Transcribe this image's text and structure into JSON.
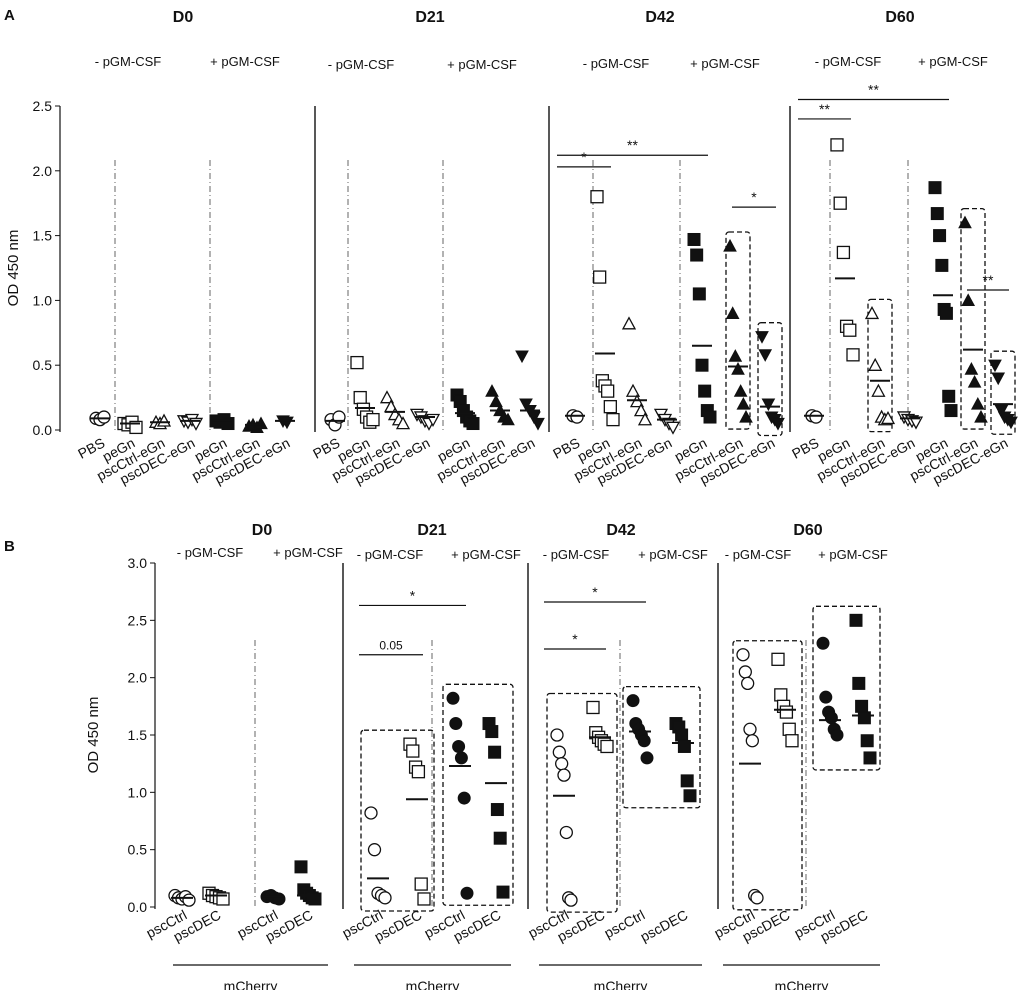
{
  "chart_data": [
    {
      "panel": "A",
      "type": "scatter",
      "ylabel": "OD 450 nm",
      "ylim": [
        0,
        2.5
      ],
      "yticks": [
        "0.0",
        "0.5",
        "1.0",
        "1.5",
        "2.0",
        "2.5"
      ],
      "neg_label": "- pGM-CSF",
      "pos_label": "+ pGM-CSF",
      "categories": [
        "PBS",
        "peGn",
        "pscCtrl-eGn",
        "pscDEC-eGn",
        "peGn",
        "pscCtrl-eGn",
        "pscDEC-eGn"
      ],
      "timepoints": [
        {
          "title": "D0",
          "groups": [
            {
              "marker": "circle-open",
              "values": [
                0.09,
                0.08,
                0.1
              ],
              "mean": 0.09
            },
            {
              "marker": "square-open",
              "values": [
                0.05,
                0.04,
                0.06,
                0.02
              ],
              "mean": 0.05
            },
            {
              "marker": "triangle-open",
              "values": [
                0.06,
                0.05,
                0.07
              ],
              "mean": 0.06
            },
            {
              "marker": "triangle-down-open",
              "values": [
                0.07,
                0.06,
                0.08,
                0.05
              ],
              "mean": 0.07
            },
            {
              "marker": "square-filled",
              "values": [
                0.07,
                0.06,
                0.08,
                0.05
              ],
              "mean": 0.07
            },
            {
              "marker": "triangle-filled",
              "values": [
                0.03,
                0.04,
                0.02,
                0.05
              ],
              "mean": 0.04
            },
            {
              "marker": "triangle-down-filled",
              "values": [
                0.07,
                0.06
              ],
              "mean": 0.07
            }
          ],
          "boxes": [],
          "sig": []
        },
        {
          "title": "D21",
          "groups": [
            {
              "marker": "circle-open",
              "values": [
                0.08,
                0.04,
                0.1
              ],
              "mean": 0.07
            },
            {
              "marker": "square-open",
              "values": [
                0.52,
                0.25,
                0.16,
                0.1,
                0.06,
                0.08
              ],
              "mean": 0.17
            },
            {
              "marker": "triangle-open",
              "values": [
                0.25,
                0.18,
                0.12,
                0.08,
                0.05
              ],
              "mean": 0.14
            },
            {
              "marker": "triangle-down-open",
              "values": [
                0.12,
                0.1,
                0.07,
                0.05,
                0.08
              ],
              "mean": 0.1
            },
            {
              "marker": "square-filled",
              "values": [
                0.27,
                0.22,
                0.15,
                0.1,
                0.07,
                0.05
              ],
              "mean": 0.13
            },
            {
              "marker": "triangle-filled",
              "values": [
                0.3,
                0.22,
                0.15,
                0.1,
                0.08
              ],
              "mean": 0.15
            },
            {
              "marker": "triangle-down-filled",
              "values": [
                0.57,
                0.2,
                0.15,
                0.1,
                0.05
              ],
              "mean": 0.15
            }
          ],
          "boxes": [],
          "sig": []
        },
        {
          "title": "D42",
          "groups": [
            {
              "marker": "circle-open",
              "values": [
                0.11,
                0.1
              ],
              "mean": 0.11
            },
            {
              "marker": "square-open",
              "values": [
                1.8,
                1.18,
                0.38,
                0.34,
                0.3,
                0.18,
                0.08
              ],
              "mean": 0.59
            },
            {
              "marker": "triangle-open",
              "values": [
                0.82,
                0.3,
                0.22,
                0.15,
                0.08
              ],
              "mean": 0.23
            },
            {
              "marker": "triangle-down-open",
              "values": [
                0.12,
                0.08,
                0.05,
                0.02
              ],
              "mean": 0.08
            },
            {
              "marker": "square-filled",
              "values": [
                1.47,
                1.35,
                1.05,
                0.5,
                0.3,
                0.15,
                0.1
              ],
              "mean": 0.65
            },
            {
              "marker": "triangle-filled",
              "values": [
                1.42,
                0.9,
                0.57,
                0.47,
                0.3,
                0.2,
                0.1
              ],
              "mean": 0.49
            },
            {
              "marker": "triangle-down-filled",
              "values": [
                0.72,
                0.58,
                0.2,
                0.1,
                0.08,
                0.05
              ],
              "mean": 0.18
            }
          ],
          "boxes": [
            [
              5,
              5
            ],
            [
              6,
              6
            ]
          ],
          "sig": [
            {
              "from": 0,
              "to": 1,
              "label": "*",
              "y": 2.03
            },
            {
              "from": 0,
              "to": 4,
              "label": "**",
              "y": 2.12
            },
            {
              "from": 5,
              "to": 6,
              "label": "*",
              "y": 1.72
            }
          ]
        },
        {
          "title": "D60",
          "groups": [
            {
              "marker": "circle-open",
              "values": [
                0.11,
                0.1
              ],
              "mean": 0.11
            },
            {
              "marker": "square-open",
              "values": [
                2.2,
                1.75,
                1.37,
                0.8,
                0.77,
                0.58
              ],
              "mean": 1.17
            },
            {
              "marker": "triangle-open",
              "values": [
                0.9,
                0.5,
                0.3,
                0.1,
                0.08,
                0.09
              ],
              "mean": 0.38
            },
            {
              "marker": "triangle-down-open",
              "values": [
                0.1,
                0.08,
                0.07,
                0.06
              ],
              "mean": 0.09
            },
            {
              "marker": "square-filled",
              "values": [
                1.87,
                1.67,
                1.5,
                1.27,
                0.93,
                0.9,
                0.26,
                0.15
              ],
              "mean": 1.04
            },
            {
              "marker": "triangle-filled",
              "values": [
                1.6,
                1.0,
                0.47,
                0.37,
                0.2,
                0.1
              ],
              "mean": 0.62
            },
            {
              "marker": "triangle-down-filled",
              "values": [
                0.5,
                0.4,
                0.15,
                0.1,
                0.08,
                0.06
              ],
              "mean": 0.2
            }
          ],
          "boxes": [
            [
              2,
              2
            ],
            [
              5,
              5
            ],
            [
              6,
              6
            ]
          ],
          "sig": [
            {
              "from": 0,
              "to": 1,
              "label": "**",
              "y": 2.4
            },
            {
              "from": 0,
              "to": 4,
              "label": "**",
              "y": 2.55
            },
            {
              "from": 5,
              "to": 6,
              "label": "**",
              "y": 1.08
            }
          ]
        }
      ]
    },
    {
      "panel": "B",
      "type": "scatter",
      "ylabel": "OD 450 nm",
      "ylim": [
        0,
        3.0
      ],
      "yticks": [
        "0.0",
        "0.5",
        "1.0",
        "1.5",
        "2.0",
        "2.5",
        "3.0"
      ],
      "neg_label": "- pGM-CSF",
      "pos_label": "+ pGM-CSF",
      "categories": [
        "pscCtrl",
        "pscDEC",
        "pscCtrl",
        "pscDEC"
      ],
      "group_label": "mCherry",
      "timepoints": [
        {
          "title": "D0",
          "groups": [
            {
              "marker": "circle-open",
              "values": [
                0.1,
                0.08,
                0.07,
                0.09,
                0.06
              ],
              "mean": 0.08
            },
            {
              "marker": "square-open",
              "values": [
                0.12,
                0.1,
                0.09,
                0.08,
                0.07
              ],
              "mean": 0.1
            },
            {
              "marker": "circle-filled",
              "values": [
                0.09,
                0.1,
                0.08,
                0.07
              ],
              "mean": 0.09
            },
            {
              "marker": "square-filled",
              "values": [
                0.35,
                0.15,
                0.12,
                0.1,
                0.08,
                0.07
              ],
              "mean": 0.1
            }
          ],
          "boxes": [],
          "sig": []
        },
        {
          "title": "D21",
          "groups": [
            {
              "marker": "circle-open",
              "values": [
                0.82,
                0.5,
                0.12,
                0.1,
                0.08
              ],
              "mean": 0.25
            },
            {
              "marker": "square-open",
              "values": [
                1.42,
                1.36,
                1.22,
                1.18,
                0.2,
                0.07
              ],
              "mean": 0.94
            },
            {
              "marker": "circle-filled",
              "values": [
                1.82,
                1.6,
                1.4,
                1.3,
                0.95,
                0.12
              ],
              "mean": 1.23
            },
            {
              "marker": "square-filled",
              "values": [
                1.6,
                1.53,
                1.35,
                0.85,
                0.6,
                0.13
              ],
              "mean": 1.08
            }
          ],
          "boxes": [
            [
              0,
              1
            ],
            [
              2,
              3
            ]
          ],
          "sig": [
            {
              "from": 0,
              "to": 1,
              "label": "0.05",
              "y": 2.2
            },
            {
              "from": 0,
              "to": 2,
              "label": "*",
              "y": 2.63
            }
          ]
        },
        {
          "title": "D42",
          "groups": [
            {
              "marker": "circle-open",
              "values": [
                1.5,
                1.35,
                1.25,
                1.15,
                0.65,
                0.08,
                0.06
              ],
              "mean": 0.97
            },
            {
              "marker": "square-open",
              "values": [
                1.74,
                1.52,
                1.48,
                1.45,
                1.42,
                1.4
              ],
              "mean": 1.48
            },
            {
              "marker": "circle-filled",
              "values": [
                1.8,
                1.6,
                1.55,
                1.5,
                1.45,
                1.3
              ],
              "mean": 1.53
            },
            {
              "marker": "square-filled",
              "values": [
                1.6,
                1.57,
                1.5,
                1.4,
                1.1,
                0.97
              ],
              "mean": 1.43
            }
          ],
          "boxes": [
            [
              0,
              1
            ],
            [
              2,
              3
            ]
          ],
          "sig": [
            {
              "from": 0,
              "to": 1,
              "label": "*",
              "y": 2.25
            },
            {
              "from": 0,
              "to": 2,
              "label": "*",
              "y": 2.66
            }
          ]
        },
        {
          "title": "D60",
          "groups": [
            {
              "marker": "circle-open",
              "values": [
                2.2,
                2.05,
                1.95,
                1.55,
                1.45,
                0.1,
                0.08
              ],
              "mean": 1.25
            },
            {
              "marker": "square-open",
              "values": [
                2.16,
                1.85,
                1.75,
                1.7,
                1.55,
                1.45
              ],
              "mean": 1.72
            },
            {
              "marker": "circle-filled",
              "values": [
                2.3,
                1.83,
                1.7,
                1.65,
                1.55,
                1.5
              ],
              "mean": 1.63
            },
            {
              "marker": "square-filled",
              "values": [
                2.5,
                1.95,
                1.75,
                1.65,
                1.45,
                1.3
              ],
              "mean": 1.67
            }
          ],
          "boxes": [
            [
              0,
              1
            ],
            [
              2,
              3
            ]
          ],
          "sig": []
        }
      ]
    }
  ]
}
